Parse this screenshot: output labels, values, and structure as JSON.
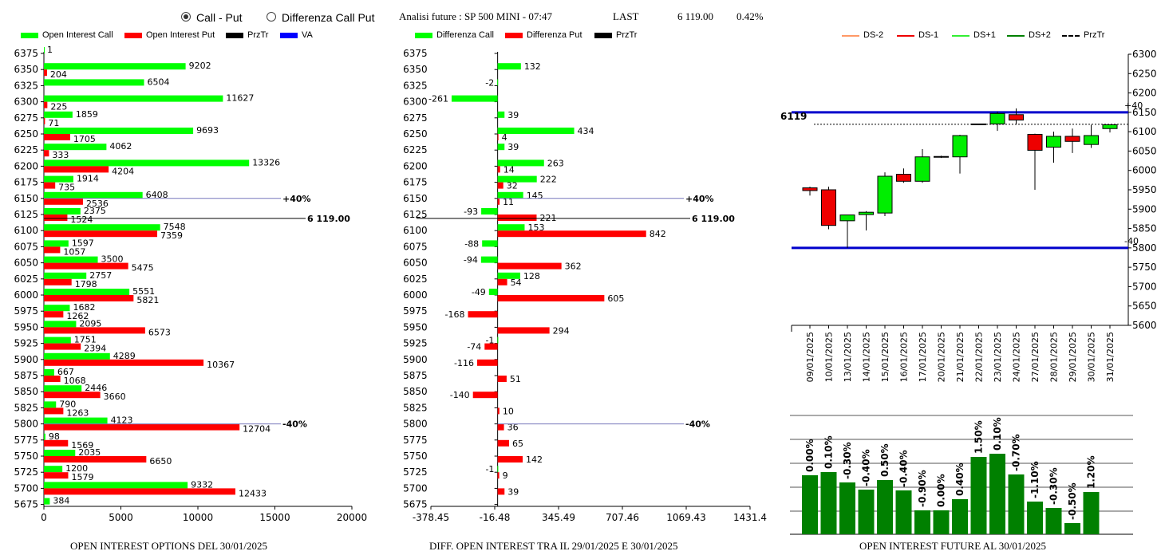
{
  "header": {
    "mode_call_put": "Call - Put",
    "mode_diff": "Differenza Call Put",
    "title": "Analisi future : SP 500 MINI - 07:47",
    "last_label": "LAST",
    "last_value": "6 119.00",
    "change": "0.42%"
  },
  "legend_left": {
    "call": "Open Interest Call",
    "put": "Open Interest Put",
    "przTr": "PrzTr",
    "va": "VA"
  },
  "legend_mid": {
    "call": "Differenza Call",
    "put": "Differenza Put",
    "przTr": "PrzTr"
  },
  "legend_right": {
    "ds_m2": "DS-2",
    "ds_m1": "DS-1",
    "ds_p1": "DS+1",
    "ds_p2": "DS+2",
    "przTr": "PrzTr"
  },
  "footers": {
    "left": "OPEN INTEREST OPTIONS DEL 30/01/2025",
    "mid": "DIFF. OPEN INTEREST TRA IL 29/01/2025 E 30/01/2025",
    "right": "OPEN INTEREST FUTURE AL 30/01/2025"
  },
  "chart_data": [
    {
      "type": "bar",
      "orientation": "horizontal",
      "categories": [
        6375,
        6350,
        6325,
        6300,
        6275,
        6250,
        6225,
        6200,
        6175,
        6150,
        6125,
        6100,
        6075,
        6050,
        6025,
        6000,
        5975,
        5950,
        5925,
        5900,
        5875,
        5850,
        5825,
        5800,
        5775,
        5750,
        5725,
        5700,
        5675
      ],
      "series": [
        {
          "name": "Open Interest Call",
          "color": "#00ff00",
          "values": [
            1,
            9202,
            6504,
            11627,
            1859,
            9693,
            4062,
            13326,
            1914,
            6408,
            2375,
            7548,
            1597,
            3500,
            2757,
            5551,
            1682,
            2095,
            1751,
            4289,
            667,
            2446,
            790,
            4123,
            98,
            2035,
            1200,
            9332,
            384
          ]
        },
        {
          "name": "Open Interest Put",
          "color": "#ff0000",
          "values": [
            null,
            204,
            null,
            225,
            71,
            1705,
            333,
            4204,
            735,
            2536,
            1524,
            7359,
            1057,
            5475,
            1798,
            5821,
            1262,
            6573,
            2394,
            10367,
            1068,
            3660,
            1263,
            12704,
            1569,
            6650,
            1579,
            12433,
            null
          ]
        }
      ],
      "xlim": [
        0,
        20000
      ],
      "xticks": [
        0,
        5000,
        10000,
        15000,
        20000
      ],
      "lines": [
        {
          "strike": 6150,
          "label": "+40%",
          "color": "#7777bb"
        },
        {
          "strike": 6119,
          "label": "6 119.00",
          "color": "#000000"
        },
        {
          "strike": 5800,
          "label": "-40%",
          "color": "#7777bb"
        }
      ]
    },
    {
      "type": "bar",
      "orientation": "horizontal",
      "categories": [
        6375,
        6350,
        6325,
        6300,
        6275,
        6250,
        6225,
        6200,
        6175,
        6150,
        6125,
        6100,
        6075,
        6050,
        6025,
        6000,
        5975,
        5950,
        5925,
        5900,
        5875,
        5850,
        5825,
        5800,
        5775,
        5750,
        5725,
        5700,
        5675
      ],
      "series": [
        {
          "name": "Differenza Call",
          "color": "#00ff00",
          "values": [
            null,
            132,
            -2,
            -261,
            39,
            434,
            39,
            263,
            222,
            145,
            -93,
            153,
            -88,
            -94,
            128,
            -49,
            null,
            null,
            -1,
            null,
            null,
            null,
            null,
            null,
            null,
            null,
            -1,
            null,
            null
          ]
        },
        {
          "name": "Differenza Put",
          "color": "#ff0000",
          "values": [
            null,
            null,
            null,
            null,
            null,
            4,
            null,
            14,
            32,
            11,
            221,
            842,
            null,
            362,
            54,
            605,
            -168,
            294,
            -74,
            -116,
            51,
            -140,
            10,
            36,
            65,
            142,
            9,
            39,
            null
          ]
        }
      ],
      "xlim": [
        -378.45,
        1431.4
      ],
      "xticks": [
        "-378.45",
        "-16.48",
        "345.49",
        "707.46",
        "1069.43",
        "1431.4"
      ],
      "lines": [
        {
          "strike": 6150,
          "label": "+40%",
          "color": "#7777bb"
        },
        {
          "strike": 6119,
          "label": "6 119.00",
          "color": "#000000"
        },
        {
          "strike": 5800,
          "label": "-40%",
          "color": "#7777bb"
        }
      ]
    },
    {
      "type": "candlestick",
      "categories": [
        "09/01/2025",
        "10/01/2025",
        "13/01/2025",
        "14/01/2025",
        "15/01/2025",
        "16/01/2025",
        "17/01/2025",
        "20/01/2025",
        "21/01/2025",
        "22/01/2025",
        "23/01/2025",
        "24/01/2025",
        "27/01/2025",
        "28/01/2025",
        "29/01/2025",
        "30/01/2025",
        "31/01/2025"
      ],
      "ohlc": [
        {
          "o": 5955,
          "h": 5958,
          "l": 5935,
          "c": 5948
        },
        {
          "o": 5950,
          "h": 5958,
          "l": 5848,
          "c": 5858
        },
        {
          "o": 5870,
          "h": 5880,
          "l": 5800,
          "c": 5885
        },
        {
          "o": 5886,
          "h": 5895,
          "l": 5845,
          "c": 5892
        },
        {
          "o": 5890,
          "h": 5995,
          "l": 5882,
          "c": 5985
        },
        {
          "o": 5990,
          "h": 6005,
          "l": 5968,
          "c": 5972
        },
        {
          "o": 5972,
          "h": 6055,
          "l": 5968,
          "c": 6035
        },
        {
          "o": 6035,
          "h": 6038,
          "l": 6032,
          "c": 6036
        },
        {
          "o": 6035,
          "h": 6092,
          "l": 5992,
          "c": 6090
        },
        {
          "o": 6119,
          "h": 6121,
          "l": 6117,
          "c": 6120
        },
        {
          "o": 6120,
          "h": 6152,
          "l": 6102,
          "c": 6147
        },
        {
          "o": 6144,
          "h": 6160,
          "l": 6118,
          "c": 6130
        },
        {
          "o": 6093,
          "h": 6095,
          "l": 5950,
          "c": 6052
        },
        {
          "o": 6060,
          "h": 6100,
          "l": 6020,
          "c": 6088
        },
        {
          "o": 6088,
          "h": 6108,
          "l": 6045,
          "c": 6075
        },
        {
          "o": 6067,
          "h": 6118,
          "l": 6058,
          "c": 6090
        },
        {
          "o": 6108,
          "h": 6118,
          "l": 6098,
          "c": 6118
        }
      ],
      "ylim": [
        5600,
        6300
      ],
      "yticks": [
        5600,
        5650,
        5700,
        5750,
        5800,
        5850,
        5900,
        5950,
        6000,
        6050,
        6100,
        6150,
        6200,
        6250,
        6300
      ],
      "last_price": 6119,
      "bands": [
        {
          "value": 6150,
          "label": "+40"
        },
        {
          "value": 5800,
          "label": "-40"
        }
      ]
    },
    {
      "type": "bar",
      "categories": [
        "09/01/2025",
        "10/01/2025",
        "13/01/2025",
        "14/01/2025",
        "15/01/2025",
        "16/01/2025",
        "17/01/2025",
        "20/01/2025",
        "21/01/2025",
        "22/01/2025",
        "23/01/2025",
        "24/01/2025",
        "27/01/2025",
        "28/01/2025",
        "29/01/2025",
        "30/01/2025",
        "31/01/2025"
      ],
      "labels": [
        "0.00%",
        "0.10%",
        "-0.30%",
        "-0.40%",
        "0.50%",
        "-0.40%",
        "-0.90%",
        "0.00%",
        "0.40%",
        "1.50%",
        "0.10%",
        "-0.70%",
        "-1.10%",
        "-0.30%",
        "-0.50%",
        "1.20%",
        ""
      ],
      "values": [
        74,
        78,
        65,
        56,
        68,
        55,
        30,
        30,
        44,
        97,
        101,
        75,
        41,
        33,
        14,
        53,
        null
      ],
      "color": "#008000"
    }
  ]
}
